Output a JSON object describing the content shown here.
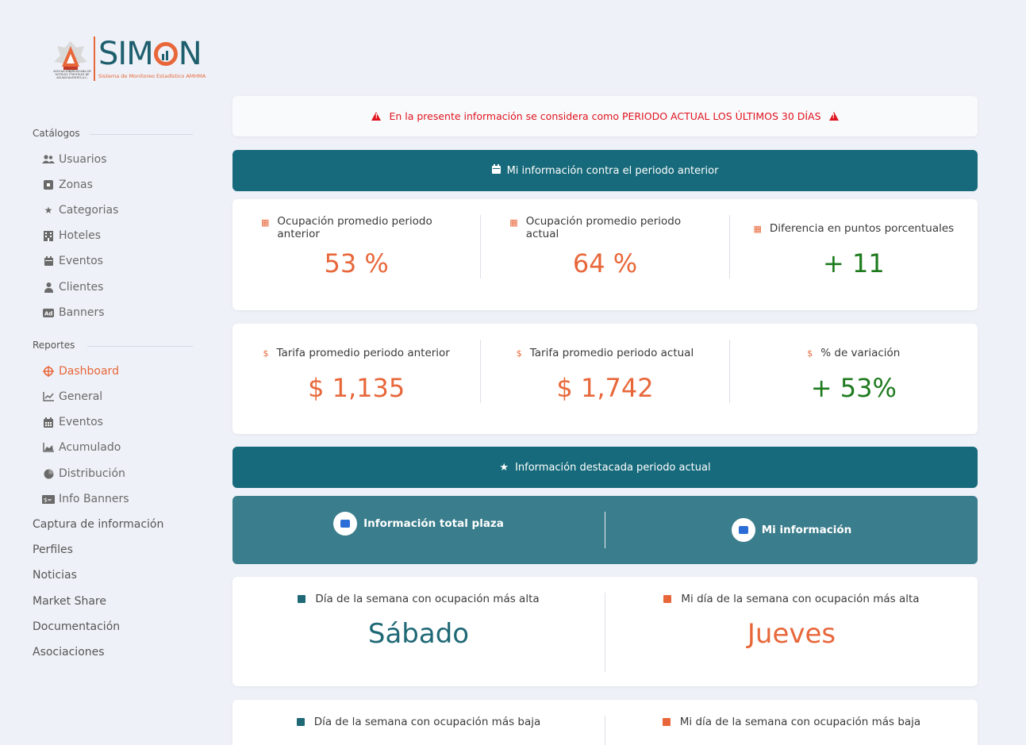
{
  "logo": {
    "brand": "SIMON",
    "subtitle": "Sistema de Monitoreo Estadístico AMHMA",
    "emblem_text": "ASOCIACIÓN MEXICANA DE HOTELES Y MOTELES DE AGUASCALIENTES A.C."
  },
  "sidebar": {
    "catalogs_title": "Catálogos",
    "catalogs": [
      {
        "label": "Usuarios",
        "icon": "users-icon"
      },
      {
        "label": "Zonas",
        "icon": "square-icon"
      },
      {
        "label": "Categorias",
        "icon": "star-icon"
      },
      {
        "label": "Hoteles",
        "icon": "building-icon"
      },
      {
        "label": "Eventos",
        "icon": "calendar-icon"
      },
      {
        "label": "Clientes",
        "icon": "user-tie-icon"
      },
      {
        "label": "Banners",
        "icon": "ad-icon"
      }
    ],
    "reports_title": "Reportes",
    "reports": [
      {
        "label": "Dashboard",
        "icon": "crosshair-icon",
        "active": true
      },
      {
        "label": "General",
        "icon": "line-chart-icon"
      },
      {
        "label": "Eventos",
        "icon": "calendar-grid-icon"
      },
      {
        "label": "Acumulado",
        "icon": "area-chart-icon"
      },
      {
        "label": "Distribución",
        "icon": "pie-chart-icon"
      },
      {
        "label": "Info Banners",
        "icon": "money-bill-icon"
      }
    ],
    "top_items": [
      "Captura de información",
      "Perfiles",
      "Noticias",
      "Market Share",
      "Documentación",
      "Asociaciones"
    ]
  },
  "alert": {
    "text": "En la presente información se considera como PERIODO ACTUAL LOS ÚLTIMOS 30 DÍAS",
    "color": "#e0141e"
  },
  "banner1": {
    "label": "Mi información contra el periodo anterior"
  },
  "occupancy": [
    {
      "label": "Ocupación promedio periodo anterior",
      "value": "53 %",
      "tone": "orange"
    },
    {
      "label": "Ocupación promedio periodo actual",
      "value": "64 %",
      "tone": "orange"
    },
    {
      "label": "Diferencia en puntos porcentuales",
      "value": "+ 11",
      "tone": "green"
    }
  ],
  "rates": [
    {
      "label": "Tarifa promedio periodo anterior",
      "value": "$ 1,135",
      "tone": "orange"
    },
    {
      "label": "Tarifa promedio periodo actual",
      "value": "$ 1,742",
      "tone": "orange"
    },
    {
      "label": "% de variación",
      "value": "+ 53%",
      "tone": "green"
    }
  ],
  "banner2": {
    "label": "Información destacada periodo actual"
  },
  "toggle": {
    "left": "Información total plaza",
    "right": "Mi información"
  },
  "high_day": {
    "left_label": "Día de la semana con ocupación más alta",
    "left_value": "Sábado",
    "right_label": "Mi día de la semana con ocupación más alta",
    "right_value": "Jueves"
  },
  "low_day": {
    "left_label": "Día de la semana con ocupación más baja",
    "right_label": "Mi día de la semana con ocupación más baja"
  },
  "colors": {
    "accent": "#e8673a",
    "teal": "#176a7b",
    "green": "#1d7a1d",
    "background": "#eef1f7"
  }
}
